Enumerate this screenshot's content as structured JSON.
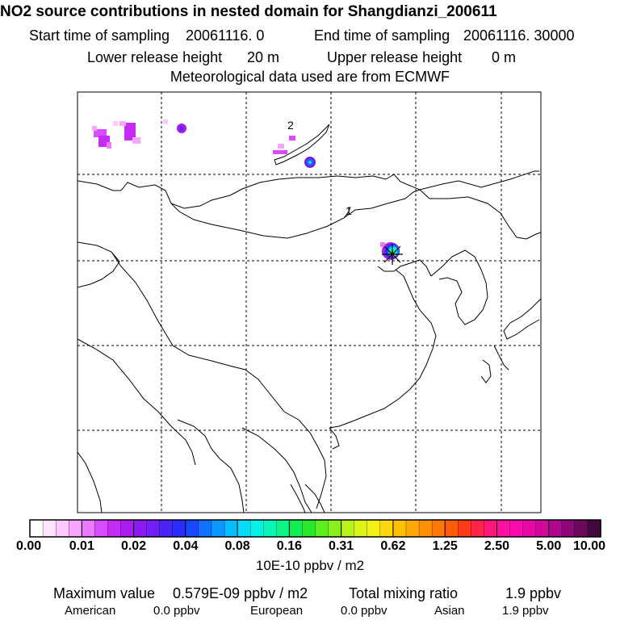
{
  "header": {
    "title": "NO2 source contributions in nested domain for Shangdianzi_200611",
    "start_label": "Start time of sampling",
    "start_value": "20061116.    0",
    "end_label": "End time of sampling",
    "end_value": "20061116. 30000",
    "lower_label": "Lower release height",
    "lower_value": "20 m",
    "upper_label": "Upper release height",
    "upper_value": "0 m",
    "met_line": "Meteorological data used are from ECMWF"
  },
  "map": {
    "contour_labels": [
      "2",
      "1"
    ],
    "station_marker": "station-cross"
  },
  "colorbar": {
    "tick_labels": [
      "0.00",
      "0.01",
      "0.02",
      "0.04",
      "0.08",
      "0.16",
      "0.31",
      "0.62",
      "1.25",
      "2.50",
      "5.00",
      "10.00"
    ],
    "unit": "10E-10 ppbv / m2",
    "colors": [
      "#ffffff",
      "#ffe4ff",
      "#ffc8ff",
      "#f7a6ff",
      "#e87aff",
      "#d84cff",
      "#c52cf5",
      "#a91cf0",
      "#8c1af2",
      "#6e20f5",
      "#4a24f7",
      "#2a2cf9",
      "#1848ff",
      "#1070ff",
      "#0a98ff",
      "#08bcff",
      "#06dcf8",
      "#06f2e4",
      "#08f7b8",
      "#0cf587",
      "#10f055",
      "#2ae82a",
      "#5af01e",
      "#8af01c",
      "#b8f41a",
      "#dcf418",
      "#f5f016",
      "#ffd80c",
      "#ffc008",
      "#ffa806",
      "#ff9004",
      "#ff7804",
      "#ff5c08",
      "#ff3c14",
      "#ff2448",
      "#ff1878",
      "#ff10a0",
      "#f80cb0",
      "#e808a8",
      "#d0089c",
      "#b0088c",
      "#8c0878",
      "#6a0a5a",
      "#440840"
    ]
  },
  "stats": {
    "max_label": "Maximum value",
    "max_value": "0.579E-09 ppbv / m2",
    "total_label": "Total mixing ratio",
    "total_value": "1.9 ppbv",
    "american_label": "American",
    "american_value": "0.0 ppbv",
    "european_label": "European",
    "european_value": "0.0 ppbv",
    "asian_label": "Asian",
    "asian_value": "1.9 ppbv"
  }
}
